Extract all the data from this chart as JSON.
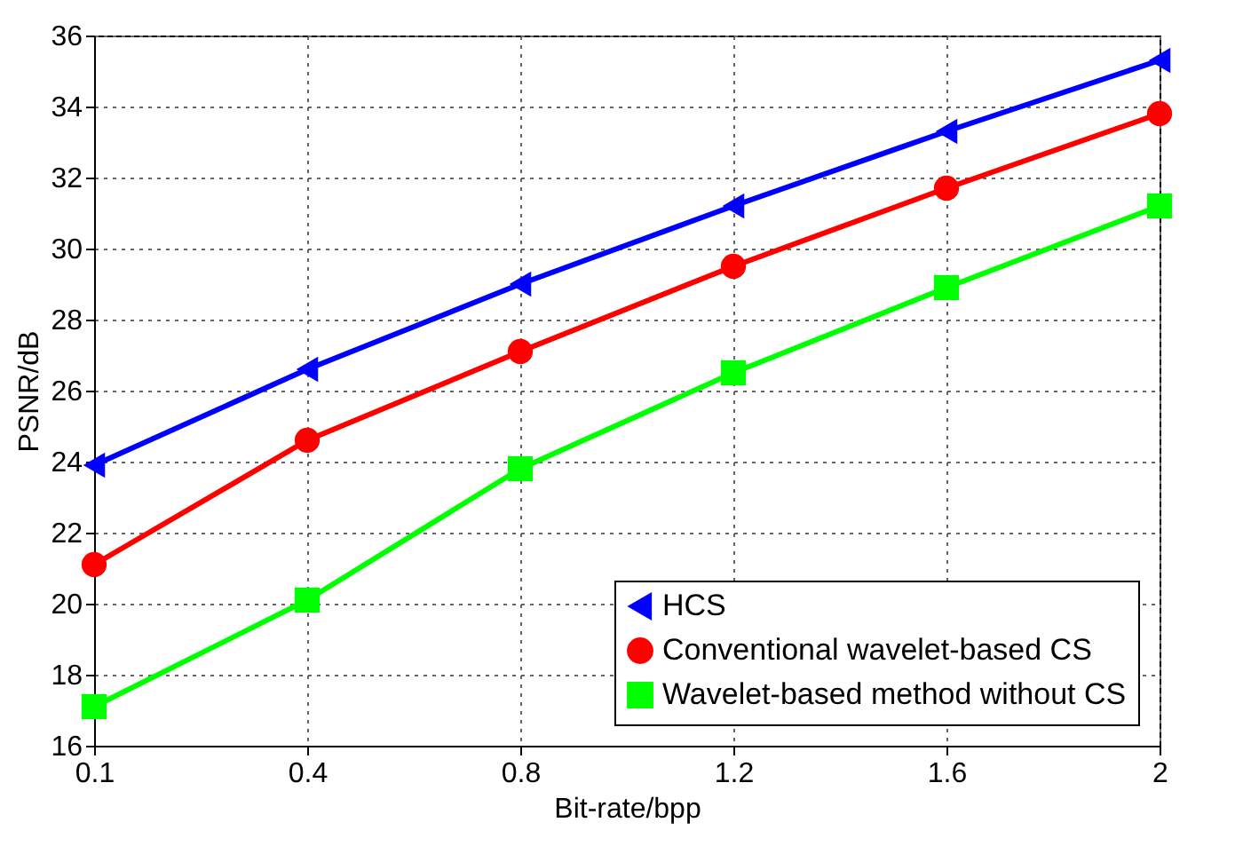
{
  "chart_data": {
    "type": "line",
    "xlabel": "Bit-rate/bpp",
    "ylabel": "PSNR/dB",
    "categories": [
      "0.1",
      "0.4",
      "0.8",
      "1.2",
      "1.6",
      "2"
    ],
    "series": [
      {
        "name": "HCS",
        "color": "#0000ff",
        "marker": "triangle",
        "values": [
          23.9,
          26.6,
          29.0,
          31.2,
          33.3,
          35.3
        ]
      },
      {
        "name": "Conventional wavelet-based CS",
        "color": "#ff0000",
        "marker": "circle",
        "values": [
          21.1,
          24.6,
          27.1,
          29.5,
          31.7,
          33.8
        ]
      },
      {
        "name": "Wavelet-based method without CS",
        "color": "#00ff00",
        "marker": "square",
        "values": [
          17.1,
          20.1,
          23.8,
          26.5,
          28.9,
          31.2
        ]
      }
    ],
    "ylim": [
      16,
      36
    ],
    "yticks": [
      16,
      18,
      20,
      22,
      24,
      26,
      28,
      30,
      32,
      34,
      36
    ],
    "grid": true,
    "legend": "bottom right",
    "line_style": "solid"
  }
}
